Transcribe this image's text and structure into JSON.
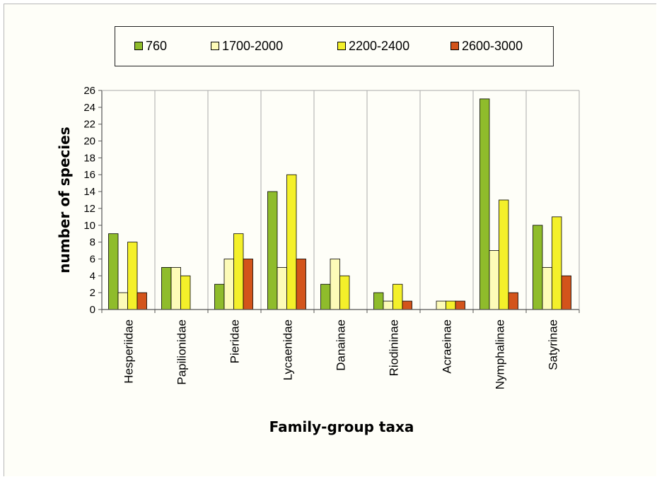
{
  "chart_data": {
    "type": "bar",
    "title": "",
    "xlabel": "Family-group taxa",
    "ylabel": "number of species",
    "ylim": [
      0,
      26
    ],
    "yticks": [
      0,
      2,
      4,
      6,
      8,
      10,
      12,
      14,
      16,
      18,
      20,
      22,
      24,
      26
    ],
    "grid": false,
    "legend_position": "top",
    "categories": [
      "Hesperiidae",
      "Papilionidae",
      "Pieridae",
      "Lycaenidae",
      "Danainae",
      "Riodininae",
      "Acraeinae",
      "Nymphalinae",
      "Satyrinae"
    ],
    "series": [
      {
        "name": "760",
        "color": "#8fbc2b",
        "values": [
          9,
          5,
          3,
          14,
          3,
          2,
          0,
          25,
          10
        ]
      },
      {
        "name": "1700-2000",
        "color": "#fdfbb8",
        "values": [
          2,
          5,
          6,
          5,
          6,
          1,
          1,
          7,
          5
        ]
      },
      {
        "name": "2200-2400",
        "color": "#f4f02a",
        "values": [
          8,
          4,
          9,
          16,
          4,
          3,
          1,
          13,
          11
        ]
      },
      {
        "name": "2600-3000",
        "color": "#d3541b",
        "values": [
          2,
          0,
          6,
          6,
          0,
          1,
          1,
          2,
          4
        ]
      }
    ]
  }
}
